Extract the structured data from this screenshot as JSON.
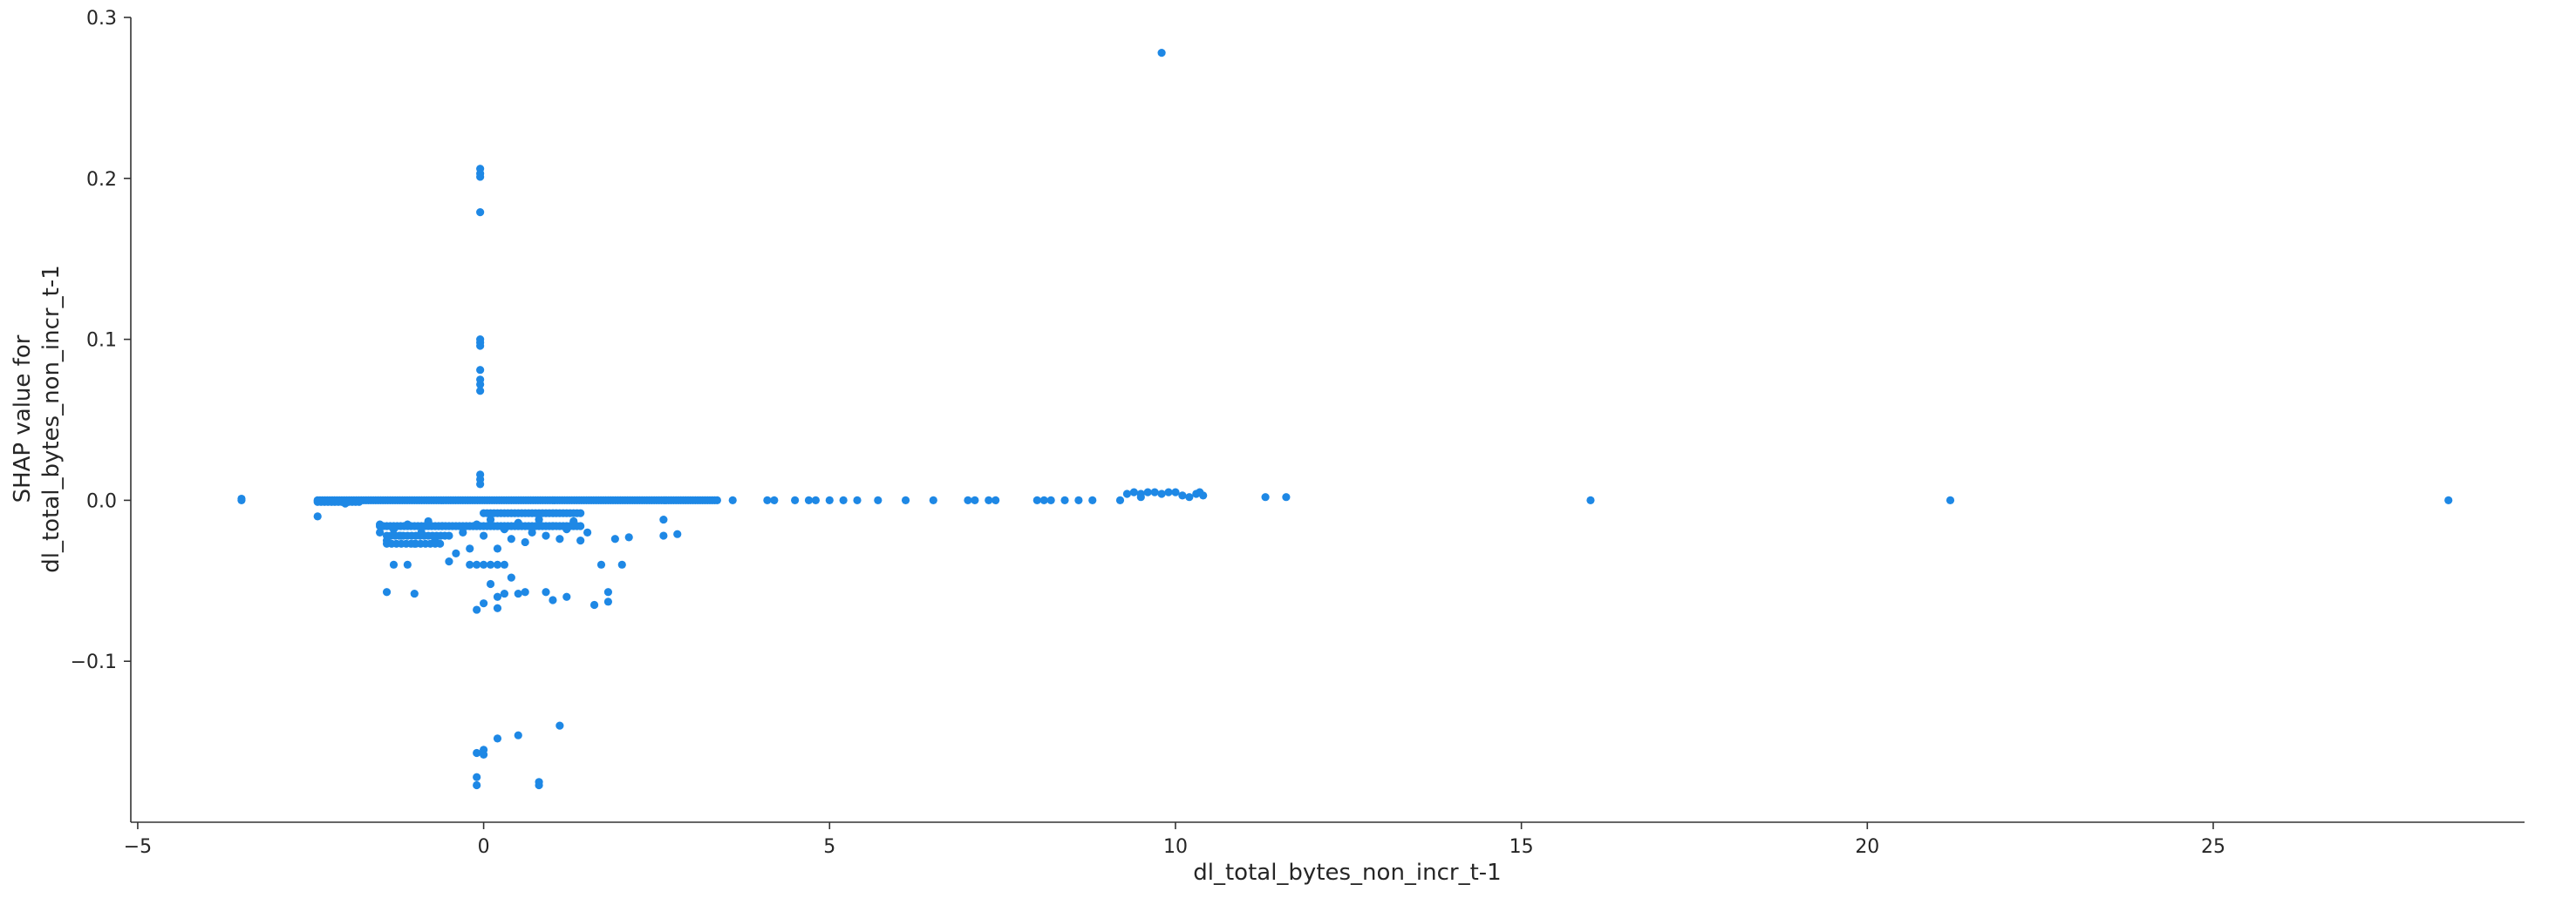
{
  "chart_data": {
    "type": "scatter",
    "title": "",
    "xlabel": "dl_total_bytes_non_incr_t-1",
    "ylabel": [
      "SHAP value for",
      "dl_total_bytes_non_incr_t-1"
    ],
    "xlim": [
      -5.1,
      29.5
    ],
    "ylim": [
      -0.2,
      0.3
    ],
    "xticks": [
      -5,
      0,
      5,
      10,
      15,
      20,
      25
    ],
    "yticks": [
      -0.1,
      0.0,
      0.1,
      0.2,
      0.3
    ],
    "ytick_labels": [
      "−0.1",
      "0.0",
      "0.1",
      "0.2",
      "0.3"
    ],
    "grid": false,
    "point_color": "#1e88e5",
    "points": [
      [
        -3.5,
        0.0
      ],
      [
        -3.5,
        0.001
      ],
      [
        -0.05,
        0.206
      ],
      [
        -0.05,
        0.203
      ],
      [
        -0.05,
        0.201
      ],
      [
        -0.05,
        0.179
      ],
      [
        -0.05,
        0.1
      ],
      [
        -0.05,
        0.098
      ],
      [
        -0.05,
        0.096
      ],
      [
        -0.05,
        0.081
      ],
      [
        -0.05,
        0.075
      ],
      [
        -0.05,
        0.072
      ],
      [
        -0.05,
        0.068
      ],
      [
        -0.05,
        0.016
      ],
      [
        -0.05,
        0.013
      ],
      [
        -0.05,
        0.01
      ],
      [
        9.8,
        0.278
      ],
      [
        -2.4,
        -0.01
      ],
      [
        -2.0,
        -0.002
      ],
      [
        -1.5,
        -0.015
      ],
      [
        -1.5,
        -0.02
      ],
      [
        -1.4,
        -0.025
      ],
      [
        -1.3,
        -0.018
      ],
      [
        -1.2,
        -0.022
      ],
      [
        -1.1,
        -0.015
      ],
      [
        -1.0,
        -0.027
      ],
      [
        -0.9,
        -0.02
      ],
      [
        -0.8,
        -0.013
      ],
      [
        -0.7,
        -0.024
      ],
      [
        -0.6,
        -0.016
      ],
      [
        -0.5,
        -0.038
      ],
      [
        -0.4,
        -0.033
      ],
      [
        -0.3,
        -0.02
      ],
      [
        -0.2,
        -0.03
      ],
      [
        -0.1,
        -0.015
      ],
      [
        0.0,
        -0.022
      ],
      [
        0.1,
        -0.012
      ],
      [
        0.2,
        -0.03
      ],
      [
        0.3,
        -0.018
      ],
      [
        0.4,
        -0.024
      ],
      [
        0.5,
        -0.014
      ],
      [
        0.6,
        -0.026
      ],
      [
        0.7,
        -0.02
      ],
      [
        0.8,
        -0.012
      ],
      [
        0.9,
        -0.022
      ],
      [
        1.0,
        -0.016
      ],
      [
        1.1,
        -0.024
      ],
      [
        1.2,
        -0.018
      ],
      [
        1.3,
        -0.013
      ],
      [
        1.4,
        -0.025
      ],
      [
        1.5,
        -0.02
      ],
      [
        1.7,
        -0.04
      ],
      [
        1.9,
        -0.024
      ],
      [
        2.0,
        -0.04
      ],
      [
        2.1,
        -0.023
      ],
      [
        2.6,
        -0.012
      ],
      [
        2.6,
        -0.022
      ],
      [
        2.8,
        -0.021
      ],
      [
        1.6,
        -0.065
      ],
      [
        -1.4,
        -0.057
      ],
      [
        -1.3,
        -0.04
      ],
      [
        -1.1,
        -0.04
      ],
      [
        -1.0,
        -0.058
      ],
      [
        -0.1,
        -0.068
      ],
      [
        0.0,
        -0.064
      ],
      [
        0.1,
        -0.052
      ],
      [
        0.2,
        -0.06
      ],
      [
        0.2,
        -0.067
      ],
      [
        0.3,
        -0.058
      ],
      [
        0.4,
        -0.048
      ],
      [
        0.5,
        -0.058
      ],
      [
        0.6,
        -0.057
      ],
      [
        0.9,
        -0.057
      ],
      [
        1.0,
        -0.062
      ],
      [
        1.2,
        -0.06
      ],
      [
        1.8,
        -0.057
      ],
      [
        1.8,
        -0.063
      ],
      [
        -0.1,
        -0.172
      ],
      [
        -0.1,
        -0.177
      ],
      [
        -0.1,
        -0.157
      ],
      [
        0.0,
        -0.155
      ],
      [
        0.0,
        -0.158
      ],
      [
        0.2,
        -0.148
      ],
      [
        0.5,
        -0.146
      ],
      [
        0.8,
        -0.177
      ],
      [
        0.8,
        -0.175
      ],
      [
        1.1,
        -0.14
      ],
      [
        3.6,
        0.0
      ],
      [
        4.1,
        0.0
      ],
      [
        4.2,
        0.0
      ],
      [
        4.5,
        0.0
      ],
      [
        4.7,
        0.0
      ],
      [
        4.8,
        0.0
      ],
      [
        5.0,
        0.0
      ],
      [
        5.2,
        0.0
      ],
      [
        5.4,
        0.0
      ],
      [
        5.7,
        0.0
      ],
      [
        6.1,
        0.0
      ],
      [
        6.5,
        0.0
      ],
      [
        7.0,
        0.0
      ],
      [
        7.1,
        0.0
      ],
      [
        7.3,
        0.0
      ],
      [
        7.4,
        0.0
      ],
      [
        8.0,
        0.0
      ],
      [
        8.1,
        0.0
      ],
      [
        8.2,
        0.0
      ],
      [
        8.4,
        0.0
      ],
      [
        8.6,
        0.0
      ],
      [
        8.8,
        0.0
      ],
      [
        9.2,
        0.0
      ],
      [
        9.3,
        0.004
      ],
      [
        9.4,
        0.005
      ],
      [
        9.5,
        0.004
      ],
      [
        9.6,
        0.005
      ],
      [
        9.7,
        0.005
      ],
      [
        9.8,
        0.004
      ],
      [
        9.9,
        0.005
      ],
      [
        10.0,
        0.005
      ],
      [
        9.5,
        0.002
      ],
      [
        10.3,
        0.004
      ],
      [
        10.35,
        0.005
      ],
      [
        10.4,
        0.003
      ],
      [
        10.2,
        0.002
      ],
      [
        10.1,
        0.003
      ],
      [
        11.3,
        0.002
      ],
      [
        11.6,
        0.002
      ],
      [
        16.0,
        0.0
      ],
      [
        21.2,
        0.0
      ],
      [
        28.4,
        0.0
      ]
    ],
    "dense_rows": [
      {
        "x_start": -2.4,
        "x_end": 3.4,
        "y": 0.0,
        "step": 0.035
      },
      {
        "x_start": -2.4,
        "x_end": -1.8,
        "y": -0.001,
        "step": 0.05
      },
      {
        "x_start": -1.5,
        "x_end": 1.4,
        "y": -0.016,
        "step": 0.05
      },
      {
        "x_start": -1.4,
        "x_end": -0.5,
        "y": -0.022,
        "step": 0.06
      },
      {
        "x_start": -1.4,
        "x_end": -0.6,
        "y": -0.027,
        "step": 0.07
      },
      {
        "x_start": 0.0,
        "x_end": 1.4,
        "y": -0.008,
        "step": 0.05
      },
      {
        "x_start": -0.2,
        "x_end": 0.3,
        "y": -0.04,
        "step": 0.1
      }
    ]
  }
}
